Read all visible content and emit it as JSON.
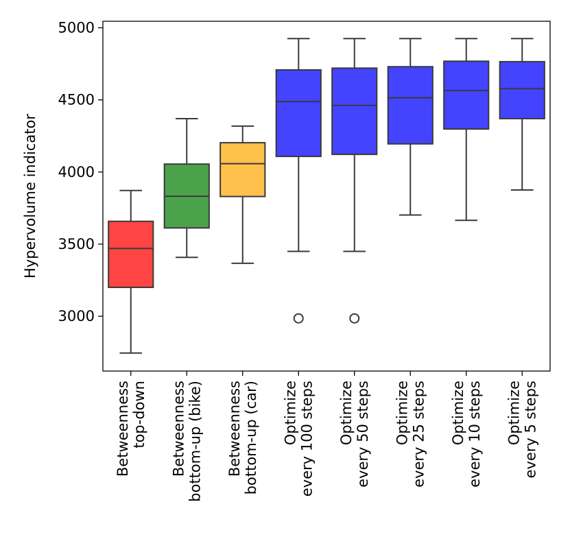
{
  "chart_data": {
    "type": "box",
    "title": "",
    "xlabel": "",
    "ylabel": "Hypervolume indicator",
    "ylim": [
      2620,
      5045
    ],
    "yticks": [
      3000,
      3500,
      4000,
      4500,
      5000
    ],
    "grid": false,
    "series": [
      {
        "label": "Betweenness\ntop-down",
        "color": "#ff4444",
        "min": 2745,
        "q1": 3200,
        "median": 3470,
        "q3": 3658,
        "max": 3872,
        "outliers": []
      },
      {
        "label": "Betweenness\nbottom-up (bike)",
        "color": "#4ba24b",
        "min": 3408,
        "q1": 3612,
        "median": 3832,
        "q3": 4055,
        "max": 4370,
        "outliers": []
      },
      {
        "label": "Betweenness\nbottom-up (car)",
        "color": "#ffc14b",
        "min": 3367,
        "q1": 3830,
        "median": 4058,
        "q3": 4203,
        "max": 4318,
        "outliers": []
      },
      {
        "label": "Optimize\nevery 100 steps",
        "color": "#4444ff",
        "min": 3450,
        "q1": 4108,
        "median": 4488,
        "q3": 4708,
        "max": 4925,
        "outliers": [
          2985
        ]
      },
      {
        "label": "Optimize\nevery 50 steps",
        "color": "#4444ff",
        "min": 3450,
        "q1": 4122,
        "median": 4462,
        "q3": 4720,
        "max": 4925,
        "outliers": [
          2985
        ]
      },
      {
        "label": "Optimize\nevery 25 steps",
        "color": "#4444ff",
        "min": 3702,
        "q1": 4195,
        "median": 4515,
        "q3": 4730,
        "max": 4925,
        "outliers": []
      },
      {
        "label": "Optimize\nevery 10 steps",
        "color": "#4444ff",
        "min": 3665,
        "q1": 4298,
        "median": 4565,
        "q3": 4768,
        "max": 4925,
        "outliers": []
      },
      {
        "label": "Optimize\nevery 5 steps",
        "color": "#4444ff",
        "min": 3875,
        "q1": 4370,
        "median": 4578,
        "q3": 4765,
        "max": 4925,
        "outliers": []
      }
    ]
  }
}
